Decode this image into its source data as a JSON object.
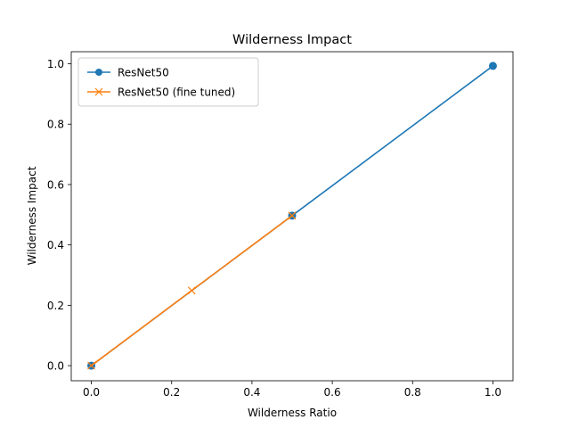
{
  "chart_data": {
    "type": "line",
    "title": "Wilderness Impact",
    "xlabel": "Wilderness Ratio",
    "ylabel": "Wilderness Impact",
    "xlim": [
      -0.05,
      1.05
    ],
    "ylim": [
      -0.05,
      1.04
    ],
    "xticks": [
      0.0,
      0.2,
      0.4,
      0.6,
      0.8,
      1.0
    ],
    "yticks": [
      0.0,
      0.2,
      0.4,
      0.6,
      0.8,
      1.0
    ],
    "xtick_labels": [
      "0.0",
      "0.2",
      "0.4",
      "0.6",
      "0.8",
      "1.0"
    ],
    "ytick_labels": [
      "0.0",
      "0.2",
      "0.4",
      "0.6",
      "0.8",
      "1.0"
    ],
    "grid": false,
    "legend_position": "top-left",
    "series": [
      {
        "name": "ResNet50",
        "color": "#1f77b4",
        "marker": "circle",
        "x": [
          0.0,
          0.5,
          1.0
        ],
        "y": [
          0.0,
          0.497,
          0.993
        ]
      },
      {
        "name": "ResNet50 (fine tuned)",
        "color": "#ff7f0e",
        "marker": "x",
        "x": [
          0.0,
          0.25,
          0.5
        ],
        "y": [
          0.0,
          0.249,
          0.497
        ]
      }
    ]
  }
}
